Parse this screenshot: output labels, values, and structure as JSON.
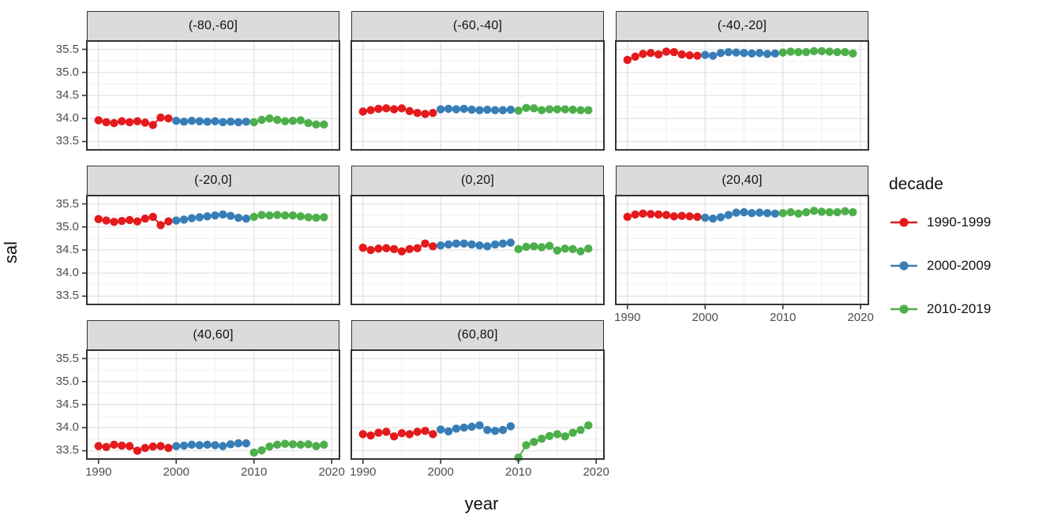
{
  "chart_data": {
    "type": "scatter",
    "title": "",
    "xlabel": "year",
    "ylabel": "sal",
    "x_ticks": [
      1990,
      2000,
      2010,
      2020
    ],
    "y_ticks": [
      35.5,
      35.0,
      34.5,
      34.0,
      33.5
    ],
    "x_minor_ticks": [
      1995,
      2005,
      2015
    ],
    "y_minor_ticks": [
      33.75,
      34.25,
      34.75,
      35.25
    ],
    "xlim": [
      1988.5,
      2021
    ],
    "ylim": [
      33.32,
      35.68
    ],
    "grid": "on",
    "legend": {
      "title": "decade",
      "position": "right",
      "entries": [
        {
          "label": "1990-1999",
          "color": "#E41A1C"
        },
        {
          "label": "2000-2009",
          "color": "#377EB8"
        },
        {
          "label": "2010-2019",
          "color": "#4DAF4A"
        }
      ]
    },
    "facets": [
      {
        "label": "(-80,-60]",
        "series": [
          {
            "name": "1990-1999",
            "start_year": 1990,
            "values": [
              33.96,
              33.92,
              33.9,
              33.94,
              33.92,
              33.94,
              33.91,
              33.86,
              34.02,
              34.0
            ]
          },
          {
            "name": "2000-2009",
            "start_year": 2000,
            "values": [
              33.95,
              33.93,
              33.95,
              33.94,
              33.93,
              33.94,
              33.92,
              33.93,
              33.92,
              33.93
            ]
          },
          {
            "name": "2010-2019",
            "start_year": 2010,
            "values": [
              33.92,
              33.97,
              34.0,
              33.97,
              33.94,
              33.95,
              33.96,
              33.9,
              33.87,
              33.87
            ]
          }
        ]
      },
      {
        "label": "(-60,-40]",
        "series": [
          {
            "name": "1990-1999",
            "start_year": 1990,
            "values": [
              34.15,
              34.18,
              34.21,
              34.22,
              34.2,
              34.22,
              34.16,
              34.12,
              34.1,
              34.12
            ]
          },
          {
            "name": "2000-2009",
            "start_year": 2000,
            "values": [
              34.2,
              34.21,
              34.2,
              34.21,
              34.19,
              34.18,
              34.19,
              34.18,
              34.18,
              34.19
            ]
          },
          {
            "name": "2010-2019",
            "start_year": 2010,
            "values": [
              34.17,
              34.23,
              34.22,
              34.18,
              34.2,
              34.2,
              34.2,
              34.19,
              34.18,
              34.18
            ]
          }
        ]
      },
      {
        "label": "(-40,-20]",
        "series": [
          {
            "name": "1990-1999",
            "start_year": 1990,
            "values": [
              35.27,
              35.34,
              35.4,
              35.42,
              35.39,
              35.45,
              35.44,
              35.39,
              35.37,
              35.36
            ]
          },
          {
            "name": "2000-2009",
            "start_year": 2000,
            "values": [
              35.38,
              35.36,
              35.42,
              35.44,
              35.43,
              35.42,
              35.41,
              35.42,
              35.4,
              35.41
            ]
          },
          {
            "name": "2010-2019",
            "start_year": 2010,
            "values": [
              35.43,
              35.45,
              35.44,
              35.44,
              35.46,
              35.46,
              35.45,
              35.44,
              35.44,
              35.41
            ]
          }
        ]
      },
      {
        "label": "(-20,0]",
        "series": [
          {
            "name": "1990-1999",
            "start_year": 1990,
            "values": [
              35.17,
              35.14,
              35.11,
              35.13,
              35.15,
              35.12,
              35.18,
              35.22,
              35.04,
              35.12
            ]
          },
          {
            "name": "2000-2009",
            "start_year": 2000,
            "values": [
              35.14,
              35.16,
              35.19,
              35.21,
              35.23,
              35.25,
              35.27,
              35.24,
              35.2,
              35.18
            ]
          },
          {
            "name": "2010-2019",
            "start_year": 2010,
            "values": [
              35.22,
              35.26,
              35.25,
              35.26,
              35.25,
              35.25,
              35.23,
              35.21,
              35.2,
              35.21
            ]
          }
        ]
      },
      {
        "label": "(0,20]",
        "series": [
          {
            "name": "1990-1999",
            "start_year": 1990,
            "values": [
              34.55,
              34.5,
              34.53,
              34.54,
              34.52,
              34.47,
              34.52,
              34.54,
              34.64,
              34.58
            ]
          },
          {
            "name": "2000-2009",
            "start_year": 2000,
            "values": [
              34.6,
              34.62,
              34.64,
              34.64,
              34.62,
              34.6,
              34.58,
              34.62,
              34.64,
              34.66
            ]
          },
          {
            "name": "2010-2019",
            "start_year": 2010,
            "values": [
              34.52,
              34.57,
              34.58,
              34.56,
              34.59,
              34.49,
              34.53,
              34.52,
              34.47,
              34.53
            ]
          }
        ]
      },
      {
        "label": "(20,40]",
        "series": [
          {
            "name": "1990-1999",
            "start_year": 1990,
            "values": [
              35.22,
              35.27,
              35.29,
              35.28,
              35.27,
              35.26,
              35.23,
              35.24,
              35.23,
              35.22
            ]
          },
          {
            "name": "2000-2009",
            "start_year": 2000,
            "values": [
              35.2,
              35.18,
              35.21,
              35.26,
              35.31,
              35.32,
              35.3,
              35.31,
              35.3,
              35.29
            ]
          },
          {
            "name": "2010-2019",
            "start_year": 2010,
            "values": [
              35.3,
              35.32,
              35.29,
              35.32,
              35.35,
              35.33,
              35.32,
              35.32,
              35.34,
              35.32
            ]
          }
        ]
      },
      {
        "label": "(40,60]",
        "series": [
          {
            "name": "1990-1999",
            "start_year": 1990,
            "values": [
              33.6,
              33.58,
              33.63,
              33.61,
              33.6,
              33.5,
              33.56,
              33.59,
              33.6,
              33.56
            ]
          },
          {
            "name": "2000-2009",
            "start_year": 2000,
            "values": [
              33.6,
              33.61,
              33.63,
              33.62,
              33.63,
              33.62,
              33.6,
              33.64,
              33.66,
              33.66
            ]
          },
          {
            "name": "2010-2019",
            "start_year": 2010,
            "values": [
              33.46,
              33.51,
              33.59,
              33.63,
              33.65,
              33.64,
              33.63,
              33.64,
              33.6,
              33.63
            ]
          }
        ]
      },
      {
        "label": "(60,80]",
        "series": [
          {
            "name": "1990-1999",
            "start_year": 1990,
            "values": [
              33.86,
              33.83,
              33.89,
              33.91,
              33.81,
              33.88,
              33.86,
              33.91,
              33.93,
              33.86
            ]
          },
          {
            "name": "2000-2009",
            "start_year": 2000,
            "values": [
              33.96,
              33.92,
              33.98,
              34.0,
              34.02,
              34.05,
              33.95,
              33.93,
              33.95,
              34.03
            ]
          },
          {
            "name": "2010-2019",
            "start_year": 2010,
            "values": [
              33.35,
              33.62,
              33.69,
              33.76,
              33.82,
              33.86,
              33.81,
              33.89,
              33.95,
              34.05
            ]
          }
        ]
      }
    ]
  }
}
